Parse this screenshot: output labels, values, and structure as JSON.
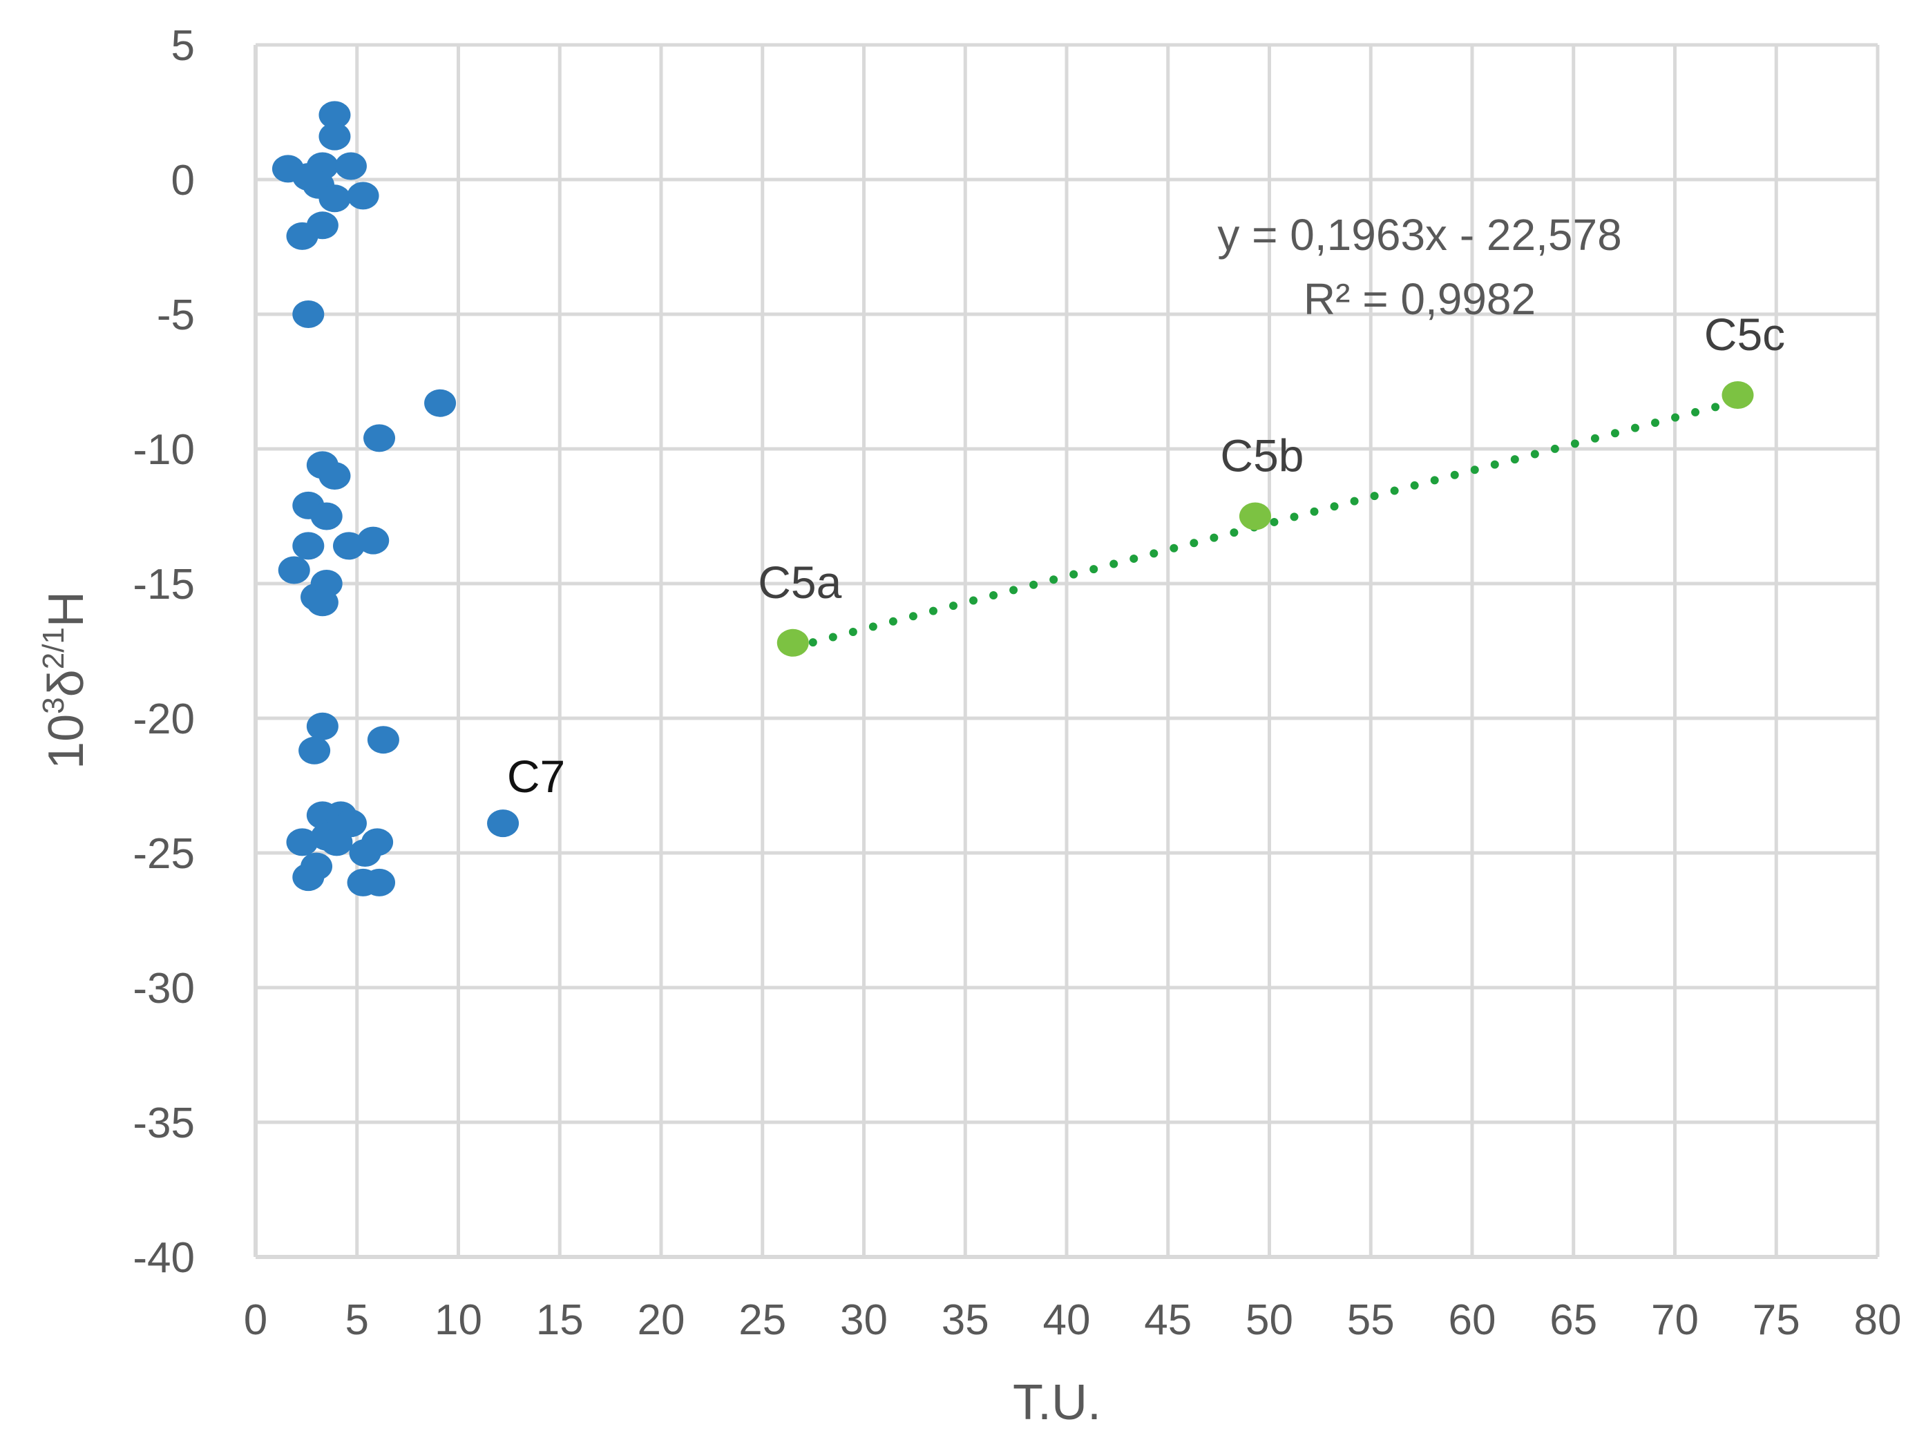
{
  "chart_data": {
    "type": "scatter",
    "xlabel": "T.U.",
    "ylabel": {
      "base": "10",
      "sup1": "3",
      "delta": "δ",
      "sup2": "2/1",
      "element": "H"
    },
    "xlim": [
      0,
      80
    ],
    "ylim": [
      -40,
      5
    ],
    "x_ticks": [
      0,
      5,
      10,
      15,
      20,
      25,
      30,
      35,
      40,
      45,
      50,
      55,
      60,
      65,
      70,
      75,
      80
    ],
    "y_ticks": [
      5,
      0,
      -5,
      -10,
      -15,
      -20,
      -25,
      -30,
      -35,
      -40
    ],
    "grid": true,
    "colors": {
      "series_blue": "#2E7EC2",
      "series_green": "#7CC242",
      "trendline": "#1EA03C",
      "grid": "#D9D9D9",
      "text": "#595959"
    },
    "series": [
      {
        "points": [
          [
            3.9,
            2.4
          ],
          [
            3.9,
            1.6
          ],
          [
            1.6,
            0.4
          ],
          [
            3.3,
            0.5
          ],
          [
            4.7,
            0.5
          ],
          [
            2.6,
            0.1
          ],
          [
            3.1,
            -0.2
          ],
          [
            3.9,
            -0.7
          ],
          [
            5.3,
            -0.6
          ],
          [
            3.3,
            -1.7
          ],
          [
            2.3,
            -2.1
          ],
          [
            2.6,
            -5.0
          ],
          [
            9.1,
            -8.3
          ],
          [
            6.1,
            -9.6
          ],
          [
            3.3,
            -10.6
          ],
          [
            3.9,
            -11.0
          ],
          [
            2.6,
            -12.1
          ],
          [
            3.5,
            -12.5
          ],
          [
            2.6,
            -13.6
          ],
          [
            4.6,
            -13.6
          ],
          [
            5.8,
            -13.4
          ],
          [
            1.9,
            -14.5
          ],
          [
            3.5,
            -15.0
          ],
          [
            3.0,
            -15.5
          ],
          [
            3.3,
            -15.7
          ],
          [
            3.3,
            -20.3
          ],
          [
            2.9,
            -21.2
          ],
          [
            6.3,
            -20.8
          ],
          [
            12.2,
            -23.9
          ],
          [
            3.3,
            -23.6
          ],
          [
            4.2,
            -23.6
          ],
          [
            4.7,
            -23.9
          ],
          [
            3.5,
            -24.4
          ],
          [
            2.3,
            -24.6
          ],
          [
            4.0,
            -24.6
          ],
          [
            6.0,
            -24.6
          ],
          [
            5.4,
            -25.0
          ],
          [
            3.0,
            -25.5
          ],
          [
            2.6,
            -25.9
          ],
          [
            5.3,
            -26.1
          ],
          [
            6.1,
            -26.1
          ]
        ],
        "labels": [
          {
            "text": "C7",
            "x": 12.2,
            "y": -23.9
          }
        ]
      },
      {
        "points": [
          [
            26.5,
            -17.2
          ],
          [
            49.3,
            -12.5
          ],
          [
            73.1,
            -8.0
          ]
        ],
        "labels": [
          {
            "text": "C5a",
            "x": 26.5,
            "y": -17.2
          },
          {
            "text": "C5b",
            "x": 49.3,
            "y": -12.5
          },
          {
            "text": "C5c",
            "x": 73.1,
            "y": -8.0
          }
        ]
      }
    ],
    "trendline": {
      "slope": 0.1963,
      "intercept": -22.578,
      "x_range": [
        26.5,
        73.1
      ],
      "equation": "y = 0,1963x - 22,578",
      "r_squared": "R² = 0,9982"
    }
  }
}
